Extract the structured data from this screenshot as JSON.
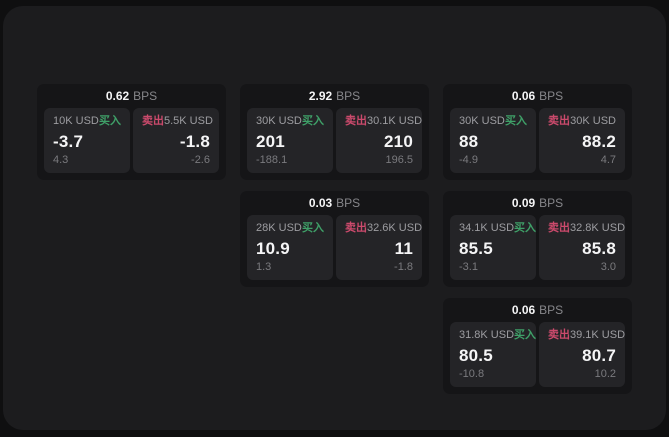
{
  "colors": {
    "outer_bg": "#0f0f10",
    "panel_bg": "#1c1c1e",
    "card_bg": "#151517",
    "tile_bg": "#242427",
    "text_primary": "#f5f5f6",
    "text_secondary": "#9d9da1",
    "text_dim": "#7a7a7e",
    "buy_green": "#3fa068",
    "sell_red": "#cb4a6c"
  },
  "unit_label": "BPS",
  "buy_label": "买入",
  "sell_label": "卖出",
  "cards": [
    {
      "bps": "0.62",
      "buy": {
        "size": "10K USD",
        "price": "-3.7",
        "delta": "4.3"
      },
      "sell": {
        "size": "5.5K USD",
        "price": "-1.8",
        "delta": "-2.6"
      }
    },
    {
      "bps": "2.92",
      "buy": {
        "size": "30K USD",
        "price": "201",
        "delta": "-188.1"
      },
      "sell": {
        "size": "30.1K USD",
        "price": "210",
        "delta": "196.5"
      }
    },
    {
      "bps": "0.06",
      "buy": {
        "size": "30K USD",
        "price": "88",
        "delta": "-4.9"
      },
      "sell": {
        "size": "30K USD",
        "price": "88.2",
        "delta": "4.7"
      }
    },
    {
      "bps": "0.03",
      "buy": {
        "size": "28K USD",
        "price": "10.9",
        "delta": "1.3"
      },
      "sell": {
        "size": "32.6K USD",
        "price": "11",
        "delta": "-1.8"
      }
    },
    {
      "bps": "0.09",
      "buy": {
        "size": "34.1K USD",
        "price": "85.5",
        "delta": "-3.1"
      },
      "sell": {
        "size": "32.8K USD",
        "price": "85.8",
        "delta": "3.0"
      }
    },
    {
      "bps": "0.06",
      "buy": {
        "size": "31.8K USD",
        "price": "80.5",
        "delta": "-10.8"
      },
      "sell": {
        "size": "39.1K USD",
        "price": "80.7",
        "delta": "10.2"
      }
    }
  ]
}
